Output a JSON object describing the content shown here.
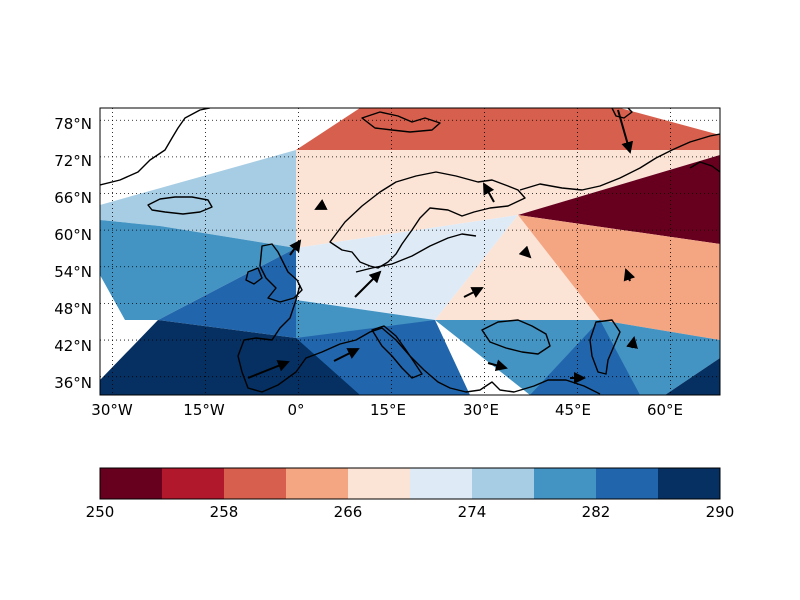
{
  "map": {
    "lon_labels": [
      "30°W",
      "15°W",
      "0°",
      "15°E",
      "30°E",
      "45°E",
      "60°E"
    ],
    "lat_labels": [
      "78°N",
      "72°N",
      "66°N",
      "60°N",
      "54°N",
      "48°N",
      "42°N",
      "36°N"
    ],
    "lon_values": [
      -30,
      -15,
      0,
      15,
      30,
      45,
      60
    ],
    "lat_values": [
      78,
      72,
      66,
      60,
      54,
      48,
      42,
      36
    ],
    "extent": {
      "lon_min": -32,
      "lon_max": 68,
      "lat_min": 33,
      "lat_max": 80
    },
    "grid": "dotted",
    "field_colors": {
      "dark_red": "#67001f",
      "salmon": "#d6604d",
      "light_salmon": "#f4a582",
      "cream": "#fbe3d6",
      "pale_blue": "#deebf7",
      "light_blue": "#a6cde4",
      "mid_blue": "#4393c3",
      "blue": "#2166ac",
      "navy": "#053061"
    },
    "wind_vectors": "black arrows"
  },
  "colorbar": {
    "ticks": [
      "250",
      "258",
      "266",
      "274",
      "282",
      "290"
    ],
    "bins": [
      {
        "from": 250,
        "to": 254,
        "color": "#67001f"
      },
      {
        "from": 254,
        "to": 258,
        "color": "#b2182b"
      },
      {
        "from": 258,
        "to": 262,
        "color": "#d6604d"
      },
      {
        "from": 262,
        "to": 266,
        "color": "#f4a582"
      },
      {
        "from": 266,
        "to": 270,
        "color": "#fbe3d6"
      },
      {
        "from": 270,
        "to": 274,
        "color": "#deebf7"
      },
      {
        "from": 274,
        "to": 278,
        "color": "#a6cde4"
      },
      {
        "from": 278,
        "to": 282,
        "color": "#4393c3"
      },
      {
        "from": 282,
        "to": 286,
        "color": "#2166ac"
      },
      {
        "from": 286,
        "to": 290,
        "color": "#053061"
      }
    ]
  }
}
